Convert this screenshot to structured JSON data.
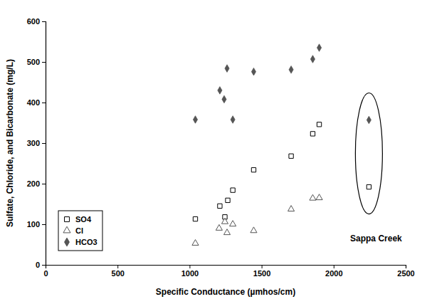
{
  "chart_data": {
    "type": "scatter",
    "x_label": "Specific Conductance (µmhos/cm)",
    "y_label": "Sulfate, Chloride, and Bicarbonate (mg/L)",
    "xlim": [
      0,
      2500
    ],
    "xticks": [
      0,
      500,
      1000,
      1500,
      2000,
      2500
    ],
    "ylim": [
      0,
      600
    ],
    "yticks": [
      0,
      100,
      200,
      300,
      400,
      500,
      600
    ],
    "grid": false,
    "legend": "lower left",
    "annotations": [
      "Sappa Creek"
    ],
    "series": [
      {
        "name": "SO4",
        "color": "#000000",
        "marker": "square-open",
        "x": [
          1040,
          1210,
          1245,
          1265,
          1300,
          1445,
          1705,
          1855,
          1900,
          2245
        ],
        "values": [
          113,
          145,
          118,
          159,
          184,
          234,
          268,
          323,
          346,
          192
        ]
      },
      {
        "name": "Cl",
        "color": "#555555",
        "marker": "triangle-open",
        "x": [
          1040,
          1205,
          1245,
          1260,
          1300,
          1445,
          1705,
          1855,
          1900
        ],
        "values": [
          53,
          90,
          106,
          79,
          100,
          84,
          137,
          164,
          165
        ]
      },
      {
        "name": "HCO3",
        "color": "#555555",
        "marker": "diamond",
        "x": [
          1040,
          1210,
          1240,
          1260,
          1300,
          1445,
          1705,
          1855,
          1900,
          2245
        ],
        "values": [
          358,
          430,
          408,
          484,
          358,
          476,
          481,
          507,
          535,
          357
        ]
      }
    ]
  }
}
